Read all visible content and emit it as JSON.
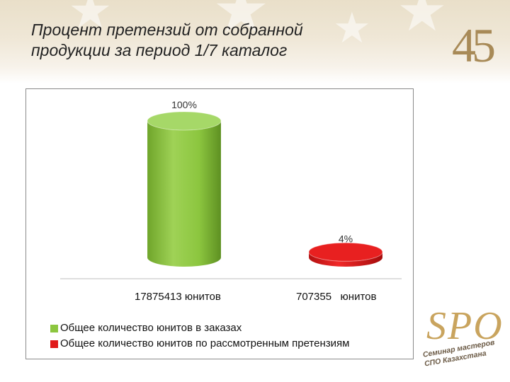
{
  "slide": {
    "title_line1": "Процент претензий от собранной",
    "title_line2": "продукции за период 1/7 каталог"
  },
  "branding": {
    "anniversary_number": "45",
    "spo_mark": "SPO",
    "spo_line1": "Семинар мастеров",
    "spo_line2": "СПО Казахстана"
  },
  "chart_data": {
    "type": "bar",
    "categories": [
      "17875413 юнитов",
      "707355   юнитов"
    ],
    "series": [
      {
        "name": "Общее количество юнитов в заказах",
        "values": [
          100,
          null
        ],
        "color": "#8cc63f"
      },
      {
        "name": "Общее количество юнитов по рассмотренным претензиям",
        "values": [
          null,
          4
        ],
        "color": "#e01a1a"
      }
    ],
    "data_labels": [
      "100%",
      "4%"
    ],
    "ylim": [
      0,
      100
    ],
    "shape": "cylinder",
    "grid": false,
    "legend_position": "bottom-left"
  }
}
